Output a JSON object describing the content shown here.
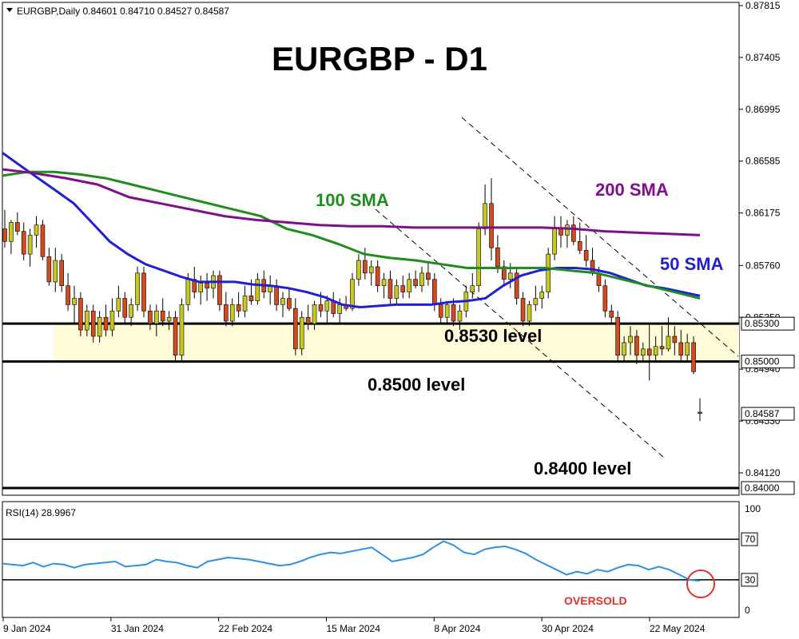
{
  "header": {
    "symbol_line": "EURGBP,Daily  0.84601 0.84710 0.84527 0.84587"
  },
  "title": "EURGBP - D1",
  "annotations": {
    "sma100": "100 SMA",
    "sma200": "200 SMA",
    "sma50": "50 SMA",
    "level_8530": "0.8530 level",
    "level_8500": "0.8500 level",
    "level_8400": "0.8400 level",
    "oversold": "OVERSOLD"
  },
  "colors": {
    "sma50": "#1f1fd6",
    "sma100": "#1e8c1e",
    "sma200": "#800e8c",
    "bull": "#c8c820",
    "bear": "#d24a1e",
    "rsi": "#2f8fe0",
    "zone": "#fffbd8",
    "oversold_circle": "#e03030"
  },
  "price_axis": {
    "ticks": [
      "0.87815",
      "0.87405",
      "0.86995",
      "0.86585",
      "0.86175",
      "0.85760",
      "0.85350",
      "0.84940",
      "0.84530",
      "0.84120"
    ],
    "boxed": [
      "0.85300",
      "0.85000",
      "0.84587",
      "0.84000"
    ]
  },
  "rsi_panel": {
    "label": "RSI(14) 28.9967",
    "ticks": [
      "100",
      "70",
      "30",
      "0"
    ]
  },
  "time_axis": {
    "labels": [
      "9 Jan 2024",
      "31 Jan 2024",
      "22 Feb 2024",
      "15 Mar 2024",
      "8 Apr 2024",
      "30 Apr 2024",
      "22 May 2024"
    ]
  },
  "chart_data": {
    "type": "candlestick",
    "title": "EURGBP - D1",
    "timeframe": "Daily",
    "symbol": "EURGBP",
    "last_bar": {
      "open": 0.84601,
      "high": 0.8471,
      "low": 0.84527,
      "close": 0.84587
    },
    "ylim": [
      0.8385,
      0.879
    ],
    "levels": [
      0.853,
      0.85,
      0.84
    ],
    "candles": [
      [
        0.8605,
        0.862,
        0.859,
        0.8595
      ],
      [
        0.8595,
        0.8612,
        0.8585,
        0.861
      ],
      [
        0.861,
        0.8618,
        0.86,
        0.8603
      ],
      [
        0.8603,
        0.861,
        0.858,
        0.8585
      ],
      [
        0.8585,
        0.8605,
        0.8575,
        0.86
      ],
      [
        0.86,
        0.8615,
        0.859,
        0.8608
      ],
      [
        0.8608,
        0.8612,
        0.858,
        0.8583
      ],
      [
        0.8583,
        0.859,
        0.856,
        0.8563
      ],
      [
        0.8563,
        0.859,
        0.8555,
        0.858
      ],
      [
        0.858,
        0.8585,
        0.8555,
        0.856
      ],
      [
        0.856,
        0.857,
        0.854,
        0.8545
      ],
      [
        0.8545,
        0.856,
        0.853,
        0.855
      ],
      [
        0.855,
        0.8555,
        0.852,
        0.8525
      ],
      [
        0.8525,
        0.8545,
        0.852,
        0.854
      ],
      [
        0.854,
        0.8545,
        0.8515,
        0.852
      ],
      [
        0.852,
        0.854,
        0.8515,
        0.8535
      ],
      [
        0.8535,
        0.8545,
        0.852,
        0.8525
      ],
      [
        0.8525,
        0.855,
        0.852,
        0.854
      ],
      [
        0.854,
        0.856,
        0.8535,
        0.855
      ],
      [
        0.855,
        0.8555,
        0.853,
        0.8535
      ],
      [
        0.8535,
        0.855,
        0.8528,
        0.8545
      ],
      [
        0.8545,
        0.8575,
        0.854,
        0.857
      ],
      [
        0.857,
        0.8575,
        0.8535,
        0.854
      ],
      [
        0.854,
        0.8545,
        0.8525,
        0.853
      ],
      [
        0.853,
        0.8545,
        0.852,
        0.854
      ],
      [
        0.854,
        0.855,
        0.8528,
        0.8532
      ],
      [
        0.8532,
        0.854,
        0.8525,
        0.8535
      ],
      [
        0.8535,
        0.854,
        0.85,
        0.8505
      ],
      [
        0.8505,
        0.855,
        0.85,
        0.8545
      ],
      [
        0.8545,
        0.857,
        0.854,
        0.8565
      ],
      [
        0.8565,
        0.8575,
        0.855,
        0.8555
      ],
      [
        0.8555,
        0.8568,
        0.8545,
        0.8562
      ],
      [
        0.8562,
        0.857,
        0.8548,
        0.8558
      ],
      [
        0.8558,
        0.8572,
        0.855,
        0.8568
      ],
      [
        0.8568,
        0.8572,
        0.854,
        0.8545
      ],
      [
        0.8545,
        0.8555,
        0.8528,
        0.8532
      ],
      [
        0.8532,
        0.855,
        0.8528,
        0.8545
      ],
      [
        0.8545,
        0.8555,
        0.8535,
        0.854
      ],
      [
        0.854,
        0.856,
        0.8535,
        0.8552
      ],
      [
        0.8552,
        0.8565,
        0.8545,
        0.8548
      ],
      [
        0.8548,
        0.857,
        0.8545,
        0.8565
      ],
      [
        0.8565,
        0.8572,
        0.855,
        0.8555
      ],
      [
        0.8555,
        0.8568,
        0.8545,
        0.856
      ],
      [
        0.856,
        0.8565,
        0.854,
        0.8545
      ],
      [
        0.8545,
        0.8555,
        0.8535,
        0.855
      ],
      [
        0.855,
        0.8558,
        0.854,
        0.8542
      ],
      [
        0.8542,
        0.855,
        0.8505,
        0.851
      ],
      [
        0.851,
        0.854,
        0.8505,
        0.8535
      ],
      [
        0.8535,
        0.8545,
        0.8525,
        0.853
      ],
      [
        0.853,
        0.8548,
        0.8525,
        0.8545
      ],
      [
        0.8545,
        0.8555,
        0.8535,
        0.854
      ],
      [
        0.854,
        0.8552,
        0.853,
        0.8548
      ],
      [
        0.8548,
        0.8555,
        0.8535,
        0.8538
      ],
      [
        0.8538,
        0.855,
        0.853,
        0.8545
      ],
      [
        0.8545,
        0.8552,
        0.854,
        0.8542
      ],
      [
        0.8542,
        0.857,
        0.854,
        0.8565
      ],
      [
        0.8565,
        0.8585,
        0.856,
        0.858
      ],
      [
        0.858,
        0.859,
        0.8565,
        0.857
      ],
      [
        0.857,
        0.858,
        0.856,
        0.8575
      ],
      [
        0.8575,
        0.858,
        0.8555,
        0.856
      ],
      [
        0.856,
        0.857,
        0.855,
        0.8565
      ],
      [
        0.8565,
        0.8572,
        0.8545,
        0.855
      ],
      [
        0.855,
        0.8565,
        0.8545,
        0.856
      ],
      [
        0.856,
        0.8568,
        0.855,
        0.8555
      ],
      [
        0.8555,
        0.857,
        0.855,
        0.8565
      ],
      [
        0.8565,
        0.8572,
        0.8558,
        0.856
      ],
      [
        0.856,
        0.8575,
        0.8555,
        0.857
      ],
      [
        0.857,
        0.8578,
        0.856,
        0.8565
      ],
      [
        0.8565,
        0.857,
        0.854,
        0.8545
      ],
      [
        0.8545,
        0.855,
        0.853,
        0.8535
      ],
      [
        0.8535,
        0.8548,
        0.853,
        0.8545
      ],
      [
        0.8545,
        0.855,
        0.8528,
        0.8532
      ],
      [
        0.8532,
        0.8545,
        0.8525,
        0.854
      ],
      [
        0.854,
        0.856,
        0.8535,
        0.8555
      ],
      [
        0.8555,
        0.857,
        0.855,
        0.856
      ],
      [
        0.856,
        0.861,
        0.8555,
        0.8605
      ],
      [
        0.8605,
        0.864,
        0.86,
        0.8625
      ],
      [
        0.8625,
        0.8645,
        0.858,
        0.859
      ],
      [
        0.859,
        0.86,
        0.857,
        0.8575
      ],
      [
        0.8575,
        0.858,
        0.856,
        0.8565
      ],
      [
        0.8565,
        0.8578,
        0.8558,
        0.857
      ],
      [
        0.857,
        0.8575,
        0.8545,
        0.855
      ],
      [
        0.855,
        0.8555,
        0.8528,
        0.8532
      ],
      [
        0.8532,
        0.8548,
        0.8528,
        0.8545
      ],
      [
        0.8545,
        0.856,
        0.854,
        0.855
      ],
      [
        0.855,
        0.856,
        0.8542,
        0.8555
      ],
      [
        0.8555,
        0.859,
        0.855,
        0.8585
      ],
      [
        0.8585,
        0.8615,
        0.858,
        0.8605
      ],
      [
        0.8605,
        0.8615,
        0.859,
        0.86
      ],
      [
        0.86,
        0.8612,
        0.859,
        0.8608
      ],
      [
        0.8608,
        0.8615,
        0.8592,
        0.8595
      ],
      [
        0.8595,
        0.861,
        0.8585,
        0.8588
      ],
      [
        0.8588,
        0.86,
        0.8575,
        0.858
      ],
      [
        0.858,
        0.859,
        0.8568,
        0.857
      ],
      [
        0.857,
        0.8575,
        0.8555,
        0.856
      ],
      [
        0.856,
        0.8565,
        0.8535,
        0.854
      ],
      [
        0.854,
        0.8545,
        0.853,
        0.8535
      ],
      [
        0.8535,
        0.854,
        0.85,
        0.8505
      ],
      [
        0.8505,
        0.852,
        0.85,
        0.8515
      ],
      [
        0.8515,
        0.8528,
        0.8505,
        0.852
      ],
      [
        0.852,
        0.8525,
        0.8498,
        0.8505
      ],
      [
        0.8505,
        0.8515,
        0.85,
        0.851
      ],
      [
        0.851,
        0.853,
        0.8485,
        0.8505
      ],
      [
        0.8505,
        0.852,
        0.85,
        0.8512
      ],
      [
        0.8512,
        0.8528,
        0.8505,
        0.851
      ],
      [
        0.851,
        0.8535,
        0.8508,
        0.852
      ],
      [
        0.852,
        0.8528,
        0.8505,
        0.8515
      ],
      [
        0.8515,
        0.8525,
        0.85,
        0.8505
      ],
      [
        0.8505,
        0.8522,
        0.85,
        0.8515
      ],
      [
        0.8515,
        0.852,
        0.849,
        0.8492
      ],
      [
        0.846,
        0.8471,
        0.8453,
        0.8459
      ]
    ],
    "series": [
      {
        "name": "50 SMA",
        "values": [
          0.8665,
          0.8655,
          0.8645,
          0.8635,
          0.8625,
          0.861,
          0.8595,
          0.8585,
          0.8577,
          0.8572,
          0.8567,
          0.8563,
          0.8563,
          0.8563,
          0.8561,
          0.856,
          0.8558,
          0.8555,
          0.8551,
          0.8545,
          0.8543,
          0.8544,
          0.8545,
          0.8545,
          0.8545,
          0.8547,
          0.8548,
          0.855,
          0.856,
          0.8568,
          0.8572,
          0.8574,
          0.8574,
          0.8573,
          0.857,
          0.8565,
          0.856,
          0.8558,
          0.8555,
          0.8552
        ]
      },
      {
        "name": "100 SMA",
        "values": [
          0.8647,
          0.865,
          0.865,
          0.8648,
          0.8645,
          0.864,
          0.8635,
          0.863,
          0.8625,
          0.862,
          0.8615,
          0.8605,
          0.86,
          0.8593,
          0.8585,
          0.8582,
          0.858,
          0.8577,
          0.8574,
          0.8574,
          0.8574,
          0.8574,
          0.8572,
          0.857,
          0.8565,
          0.856,
          0.8555,
          0.855
        ]
      },
      {
        "name": "200 SMA",
        "values": [
          0.8652,
          0.8649,
          0.8645,
          0.864,
          0.863,
          0.8625,
          0.862,
          0.8615,
          0.8612,
          0.861,
          0.8608,
          0.8607,
          0.8607,
          0.8606,
          0.8606,
          0.8606,
          0.8606,
          0.8606,
          0.8605,
          0.8603,
          0.8602,
          0.8601,
          0.86
        ]
      },
      {
        "name": "RSI(14)",
        "values": [
          46,
          45,
          44,
          47,
          43,
          46,
          45,
          42,
          45,
          46,
          47,
          48,
          43,
          44,
          45,
          50,
          48,
          47,
          44,
          42,
          48,
          50,
          52,
          51,
          50,
          48,
          46,
          44,
          45,
          48,
          52,
          55,
          57,
          56,
          58,
          60,
          62,
          55,
          48,
          50,
          52,
          55,
          62,
          68,
          64,
          57,
          55,
          60,
          62,
          63,
          60,
          56,
          50,
          45,
          40,
          35,
          38,
          36,
          40,
          38,
          42,
          45,
          44,
          40,
          43,
          40,
          35,
          30,
          29
        ]
      }
    ],
    "rsi_ylim": [
      0,
      100
    ],
    "rsi_levels": [
      70,
      30
    ],
    "x_labels": [
      "9 Jan 2024",
      "31 Jan 2024",
      "22 Feb 2024",
      "15 Mar 2024",
      "8 Apr 2024",
      "30 Apr 2024",
      "22 May 2024"
    ]
  }
}
